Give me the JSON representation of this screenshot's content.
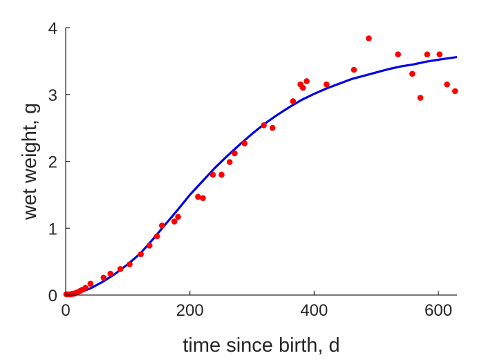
{
  "chart_data": {
    "type": "scatter",
    "title": "",
    "xlabel": "time since birth, d",
    "ylabel": "wet weight, g",
    "xlim": [
      0,
      630
    ],
    "ylim": [
      0,
      4
    ],
    "xticks": [
      0,
      200,
      400,
      600
    ],
    "yticks": [
      0,
      1,
      2,
      3,
      4
    ],
    "grid": false,
    "colors": {
      "points": "#ff0000",
      "fit": "#0000e6",
      "axes": "#262626"
    },
    "series": [
      {
        "kind": "scatter",
        "points": [
          [
            1,
            0.01
          ],
          [
            3,
            0.01
          ],
          [
            5,
            0.01
          ],
          [
            7,
            0.01
          ],
          [
            9,
            0.01
          ],
          [
            11,
            0.02
          ],
          [
            13,
            0.02
          ],
          [
            16,
            0.03
          ],
          [
            19,
            0.04
          ],
          [
            23,
            0.06
          ],
          [
            27,
            0.08
          ],
          [
            32,
            0.11
          ],
          [
            40,
            0.17
          ],
          [
            61,
            0.26
          ],
          [
            72,
            0.32
          ],
          [
            88,
            0.39
          ],
          [
            103,
            0.46
          ],
          [
            121,
            0.61
          ],
          [
            135,
            0.74
          ],
          [
            147,
            0.88
          ],
          [
            155,
            1.04
          ],
          [
            175,
            1.1
          ],
          [
            181,
            1.17
          ],
          [
            213,
            1.47
          ],
          [
            221,
            1.45
          ],
          [
            237,
            1.8
          ],
          [
            251,
            1.8
          ],
          [
            264,
            1.99
          ],
          [
            272,
            2.12
          ],
          [
            288,
            2.27
          ],
          [
            319,
            2.54
          ],
          [
            333,
            2.5
          ],
          [
            366,
            2.9
          ],
          [
            378,
            3.15
          ],
          [
            382,
            3.1
          ],
          [
            388,
            3.2
          ],
          [
            420,
            3.15
          ],
          [
            464,
            3.37
          ],
          [
            488,
            3.84
          ],
          [
            535,
            3.6
          ],
          [
            558,
            3.31
          ],
          [
            571,
            2.95
          ],
          [
            582,
            3.6
          ],
          [
            602,
            3.6
          ],
          [
            614,
            3.15
          ],
          [
            627,
            3.05
          ]
        ]
      },
      {
        "kind": "line",
        "points": [
          [
            0,
            0.0
          ],
          [
            20,
            0.03
          ],
          [
            40,
            0.1
          ],
          [
            60,
            0.2
          ],
          [
            80,
            0.32
          ],
          [
            100,
            0.46
          ],
          [
            120,
            0.62
          ],
          [
            140,
            0.83
          ],
          [
            160,
            1.05
          ],
          [
            180,
            1.27
          ],
          [
            200,
            1.5
          ],
          [
            220,
            1.7
          ],
          [
            240,
            1.9
          ],
          [
            260,
            2.08
          ],
          [
            280,
            2.25
          ],
          [
            300,
            2.41
          ],
          [
            320,
            2.56
          ],
          [
            340,
            2.69
          ],
          [
            360,
            2.81
          ],
          [
            380,
            2.92
          ],
          [
            400,
            3.01
          ],
          [
            420,
            3.09
          ],
          [
            440,
            3.16
          ],
          [
            460,
            3.23
          ],
          [
            480,
            3.28
          ],
          [
            500,
            3.33
          ],
          [
            520,
            3.38
          ],
          [
            540,
            3.42
          ],
          [
            560,
            3.45
          ],
          [
            580,
            3.49
          ],
          [
            600,
            3.52
          ],
          [
            630,
            3.56
          ]
        ]
      }
    ]
  }
}
